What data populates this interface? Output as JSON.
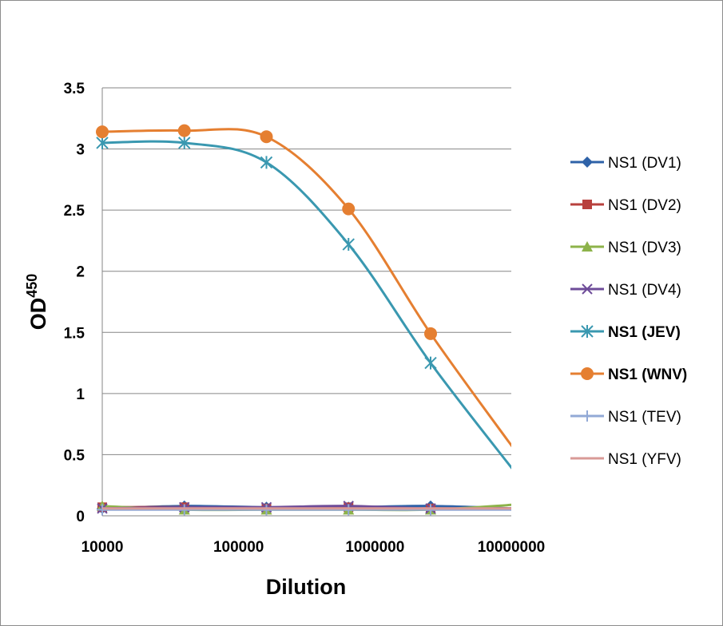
{
  "chart_data": {
    "type": "line",
    "title": "",
    "xlabel": "Dilution",
    "ylabel": "OD",
    "ylabel_superscript": "450",
    "x_scale": "log",
    "xlim": [
      10000,
      10000000
    ],
    "ylim": [
      0,
      3.5
    ],
    "x_ticks": [
      "10000",
      "100000",
      "1000000",
      "10000000"
    ],
    "y_ticks": [
      "0",
      "0.5",
      "1",
      "1.5",
      "2",
      "2.5",
      "3",
      "3.5"
    ],
    "grid": "horizontal",
    "legend_position": "right",
    "x": [
      10000,
      40000,
      160000,
      640000,
      2560000,
      10240000
    ],
    "series": [
      {
        "name": "NS1 (DV1)",
        "color": "#2e62a8",
        "marker": "diamond",
        "bold": false,
        "values": [
          0.06,
          0.08,
          0.07,
          0.07,
          0.08,
          0.06
        ]
      },
      {
        "name": "NS1 (DV2)",
        "color": "#b8403d",
        "marker": "square",
        "bold": false,
        "values": [
          0.07,
          0.07,
          0.06,
          0.07,
          0.06,
          0.06
        ]
      },
      {
        "name": "NS1 (DV3)",
        "color": "#8db34a",
        "marker": "triangle",
        "bold": false,
        "values": [
          0.08,
          0.05,
          0.05,
          0.05,
          0.05,
          0.09
        ]
      },
      {
        "name": "NS1 (DV4)",
        "color": "#6e4c99",
        "marker": "x",
        "bold": false,
        "values": [
          0.06,
          0.07,
          0.07,
          0.08,
          0.06,
          0.06
        ]
      },
      {
        "name": "NS1 (JEV)",
        "color": "#3a98b0",
        "marker": "star",
        "bold": true,
        "values": [
          3.05,
          3.05,
          2.89,
          2.22,
          1.25,
          0.38
        ]
      },
      {
        "name": "NS1 (WNV)",
        "color": "#e57f31",
        "marker": "circle",
        "bold": true,
        "values": [
          3.14,
          3.15,
          3.1,
          2.51,
          1.49,
          0.56
        ]
      },
      {
        "name": "NS1 (TEV)",
        "color": "#92a9d6",
        "marker": "plus",
        "bold": false,
        "values": [
          0.05,
          0.05,
          0.05,
          0.05,
          0.05,
          0.05
        ]
      },
      {
        "name": "NS1 (YFV)",
        "color": "#d99a97",
        "marker": "none",
        "bold": false,
        "values": [
          0.06,
          0.06,
          0.06,
          0.06,
          0.06,
          0.06
        ]
      }
    ]
  }
}
